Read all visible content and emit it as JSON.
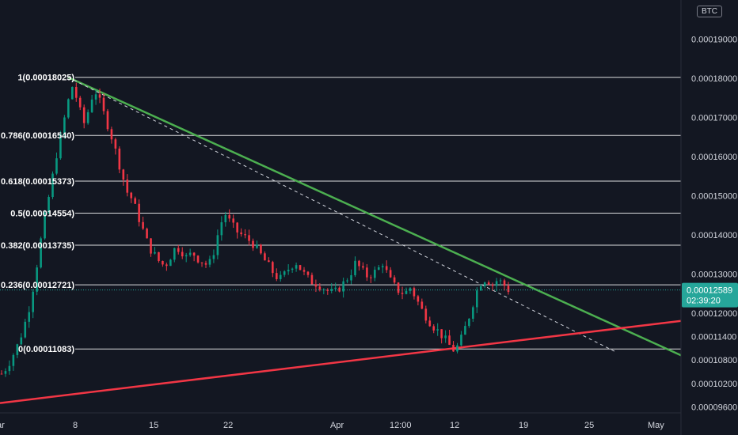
{
  "header": {
    "unit": "BTC"
  },
  "chart_data": {
    "type": "candlestick",
    "ylim": [
      9.45e-05,
      0.0002
    ],
    "y_ticks": [
      {
        "value": 0.00019,
        "label": "0.00019000"
      },
      {
        "value": 0.00018,
        "label": "0.00018000"
      },
      {
        "value": 0.00017,
        "label": "0.00017000"
      },
      {
        "value": 0.00016,
        "label": "0.00016000"
      },
      {
        "value": 0.00015,
        "label": "0.00015000"
      },
      {
        "value": 0.00014,
        "label": "0.00014000"
      },
      {
        "value": 0.00013,
        "label": "0.00013000"
      },
      {
        "value": 0.00012,
        "label": "0.00012000"
      },
      {
        "value": 0.000114,
        "label": "0.00011400"
      },
      {
        "value": 0.000108,
        "label": "0.00010800"
      },
      {
        "value": 0.000102,
        "label": "0.00010200"
      },
      {
        "value": 9.6e-05,
        "label": "0.00009600"
      }
    ],
    "x_ticks": [
      "ar",
      "8",
      "15",
      "22",
      "Apr",
      "12:00",
      "12",
      "19",
      "25",
      "May"
    ],
    "fib_levels": [
      {
        "ratio": 1,
        "value": 0.00018025,
        "label": "1(0.00018025)"
      },
      {
        "ratio": 0.786,
        "value": 0.0001654,
        "label": "0.786(0.00016540)"
      },
      {
        "ratio": 0.618,
        "value": 0.00015373,
        "label": "0.618(0.00015373)"
      },
      {
        "ratio": 0.5,
        "value": 0.00014554,
        "label": "0.5(0.00014554)"
      },
      {
        "ratio": 0.382,
        "value": 0.00013735,
        "label": "0.382(0.00013735)"
      },
      {
        "ratio": 0.236,
        "value": 0.00012721,
        "label": "0.236(0.00012721)"
      },
      {
        "ratio": 0,
        "value": 0.00011083,
        "label": "0(0.00011083)"
      }
    ],
    "last_price": {
      "value": 0.00012589,
      "label": "0.00012589",
      "countdown": "02:39:20"
    },
    "price_path": [
      0.0001045,
      0.0001063,
      0.000109,
      0.000112,
      0.000116,
      0.000121,
      0.000128,
      0.000137,
      0.000145,
      0.000152,
      0.00016,
      0.000166,
      0.000173,
      0.000178,
      0.000174,
      0.000168,
      0.000172,
      0.0001775,
      0.000174,
      0.00017,
      0.000166,
      0.000161,
      0.000156,
      0.000151,
      0.000149,
      0.000145,
      0.000141,
      0.000137,
      0.000135,
      0.000133,
      0.000132,
      0.0001345,
      0.000137,
      0.000136,
      0.000134,
      0.0001355,
      0.000134,
      0.000133,
      0.000132,
      0.000136,
      0.000142,
      0.0001455,
      0.000143,
      0.000141,
      0.00014,
      0.000139,
      0.000138,
      0.000136,
      0.000134,
      0.000132,
      0.00013,
      0.0001285,
      0.00013,
      0.000132,
      0.000133,
      0.000131,
      0.000129,
      0.000128,
      0.0001275,
      0.0001265,
      0.0001255,
      0.000125,
      0.0001265,
      0.000128,
      0.00013,
      0.000133,
      0.000131,
      0.0001295,
      0.00013,
      0.000131,
      0.000133,
      0.000129,
      0.000127,
      0.0001255,
      0.000125,
      0.0001265,
      0.000124,
      0.000121,
      0.000119,
      0.000117,
      0.0001155,
      0.000114,
      0.000112,
      0.0001105,
      0.000112,
      0.000116,
      0.00012,
      0.000125,
      0.000128,
      0.000129,
      0.000127,
      0.0001285,
      0.0001275,
      0.000126
    ],
    "lines": [
      {
        "name": "descending-resistance",
        "color": "#4caf50",
        "style": "solid",
        "p1": [
          0.1,
          0.00018025
        ],
        "p2": [
          1.0,
          0.0001092
        ]
      },
      {
        "name": "dashed-trend",
        "color": "#d1d4dc",
        "style": "dashed",
        "p1": [
          0.1,
          0.00018025
        ],
        "p2": [
          0.905,
          0.00011
        ]
      },
      {
        "name": "ascending-support",
        "color": "#f23645",
        "style": "solid",
        "p1": [
          0.0,
          9.7e-05
        ],
        "p2": [
          1.0,
          0.000118
        ]
      }
    ],
    "colors": {
      "up": "#089981",
      "down": "#f23645",
      "background": "#131722",
      "grid": "#ffffff",
      "badge": "#26a69a"
    }
  }
}
